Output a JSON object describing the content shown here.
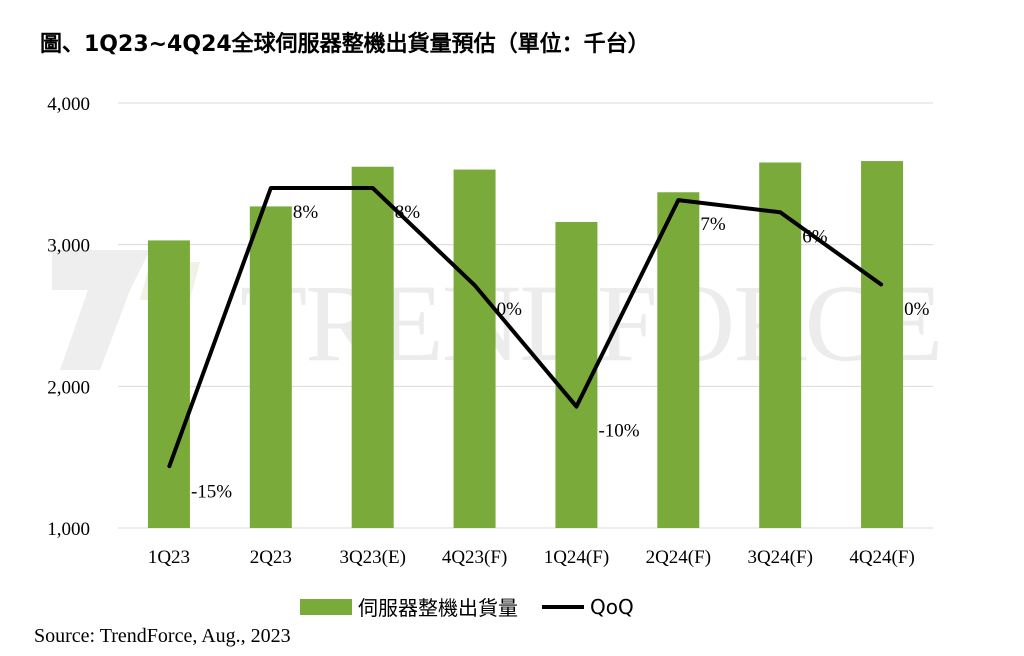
{
  "title": "圖、1Q23~4Q24全球伺服器整機出貨量預估（單位：千台）",
  "source": "Source: TrendForce, Aug., 2023",
  "watermark": "TRENDFORCE",
  "colors": {
    "bar": "#7aab3a",
    "line": "#000000",
    "grid": "#d9d9d9"
  },
  "chart_data": {
    "type": "bar",
    "categories": [
      "1Q23",
      "2Q23",
      "3Q23(E)",
      "4Q23(F)",
      "1Q24(F)",
      "2Q24(F)",
      "3Q24(F)",
      "4Q24(F)"
    ],
    "series": [
      {
        "name": "伺服器整機出貨量",
        "type": "bar",
        "values": [
          3030,
          3270,
          3550,
          3530,
          3160,
          3370,
          3580,
          3590
        ]
      },
      {
        "name": "QoQ",
        "type": "line",
        "values": [
          -15,
          8,
          8,
          0,
          -10,
          7,
          6,
          0
        ],
        "labels": [
          "-15%",
          "8%",
          "8%",
          "0%",
          "-10%",
          "7%",
          "6%",
          "0%"
        ]
      }
    ],
    "yaxis": {
      "ticks": [
        "1,000",
        "2,000",
        "3,000",
        "4,000"
      ],
      "ylim": [
        1000,
        4000
      ]
    },
    "secondary_ylim": [
      -20,
      15
    ],
    "grid": true,
    "legend_position": "bottom"
  }
}
